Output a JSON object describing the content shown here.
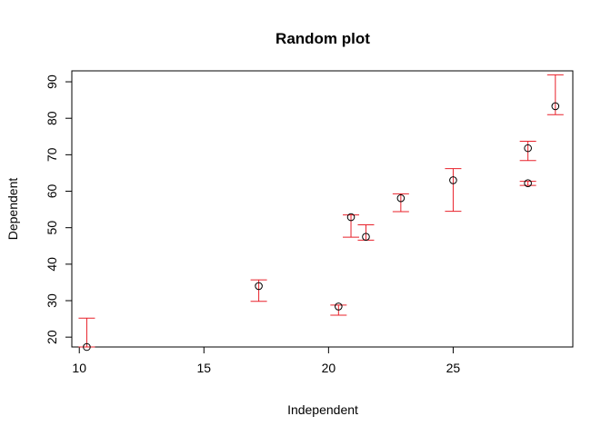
{
  "chart_data": {
    "type": "scatter",
    "title": "Random plot",
    "xlabel": "Independent",
    "ylabel": "Dependent",
    "xlim": [
      9.7,
      29.8
    ],
    "ylim": [
      17.3,
      93
    ],
    "xticks": [
      10,
      15,
      20,
      25
    ],
    "yticks": [
      20,
      30,
      40,
      50,
      60,
      70,
      80,
      90
    ],
    "grid": false,
    "legend": "none",
    "point_color": "#000000",
    "errorbar_color": "#e8202a",
    "points": [
      {
        "x": 10.3,
        "y": 17.3,
        "ymin": 17.3,
        "ymax": 25.2
      },
      {
        "x": 17.2,
        "y": 34.0,
        "ymin": 29.8,
        "ymax": 35.7
      },
      {
        "x": 20.4,
        "y": 28.4,
        "ymin": 26.0,
        "ymax": 28.8
      },
      {
        "x": 20.9,
        "y": 52.9,
        "ymin": 47.4,
        "ymax": 53.5
      },
      {
        "x": 21.5,
        "y": 47.5,
        "ymin": 46.6,
        "ymax": 50.8
      },
      {
        "x": 22.9,
        "y": 58.1,
        "ymin": 54.4,
        "ymax": 59.3
      },
      {
        "x": 25.0,
        "y": 63.0,
        "ymin": 54.5,
        "ymax": 66.2
      },
      {
        "x": 28.0,
        "y": 71.8,
        "ymin": 68.4,
        "ymax": 73.7
      },
      {
        "x": 28.0,
        "y": 62.2,
        "ymin": 61.6,
        "ymax": 62.7
      },
      {
        "x": 29.1,
        "y": 83.3,
        "ymin": 81.0,
        "ymax": 91.9
      }
    ]
  }
}
